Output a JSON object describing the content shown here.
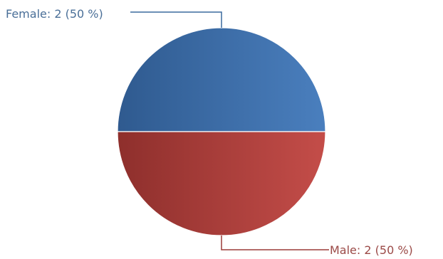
{
  "chart_data": {
    "type": "pie",
    "title": "",
    "slices": [
      {
        "label": "Female",
        "value": 2,
        "percent": 50,
        "color": "#4575b4",
        "text": "Female: 2 (50 %)"
      },
      {
        "label": "Male",
        "value": 2,
        "percent": 50,
        "color": "#c0504d",
        "text": "Male: 2 (50 %)"
      }
    ],
    "legend": "none"
  },
  "colors": {
    "female_dark": "#2f5a8f",
    "female_light": "#4a7fbe",
    "male_dark": "#8e2f2c",
    "male_light": "#c44d49",
    "female_text": "#4a6f98",
    "male_text": "#9b4a47",
    "female_leader": "#3a6a9e",
    "male_leader": "#9c3b38"
  }
}
